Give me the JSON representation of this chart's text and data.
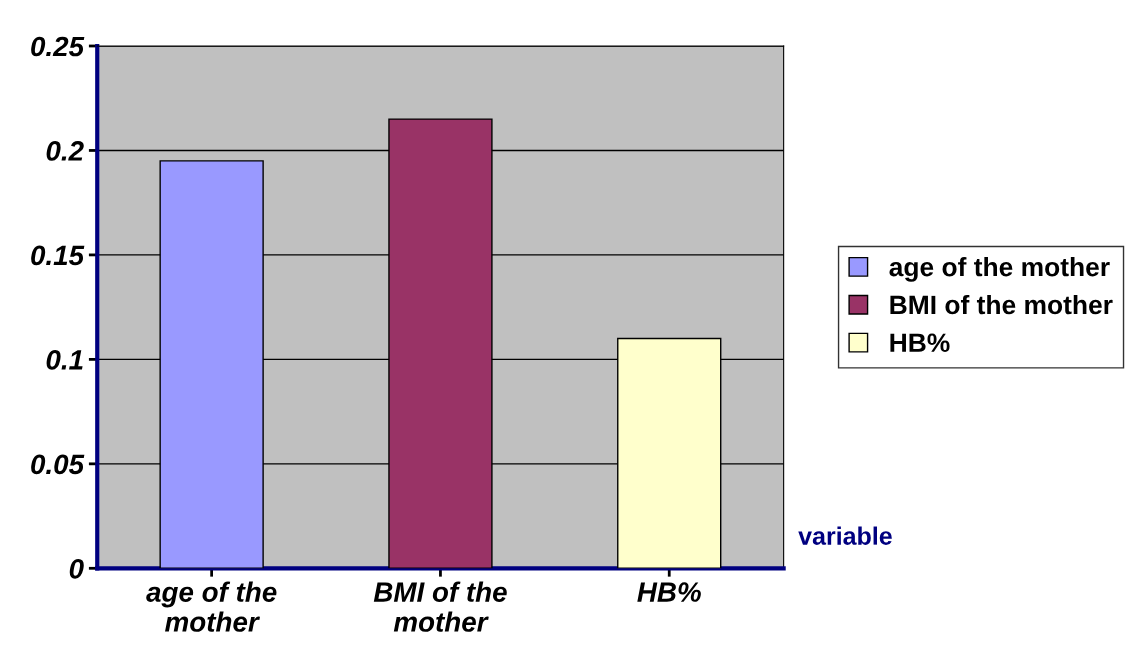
{
  "chart_data": {
    "type": "bar",
    "categories": [
      "age of the\nmother",
      "BMI of the\nmother",
      "HB%"
    ],
    "xlabel": "variable",
    "series": [
      {
        "name": "age of the mother",
        "color": "#9999ff",
        "values": [
          0.195,
          null,
          null
        ]
      },
      {
        "name": "BMI of the mother",
        "color": "#993366",
        "values": [
          null,
          0.215,
          null
        ]
      },
      {
        "name": "HB%",
        "color": "#ffffcc",
        "values": [
          null,
          null,
          0.11
        ]
      }
    ],
    "ylim": [
      0,
      0.25
    ],
    "yticks": [
      0,
      0.05,
      0.1,
      0.15,
      0.2,
      0.25
    ],
    "grid": "y",
    "legend": "right"
  }
}
